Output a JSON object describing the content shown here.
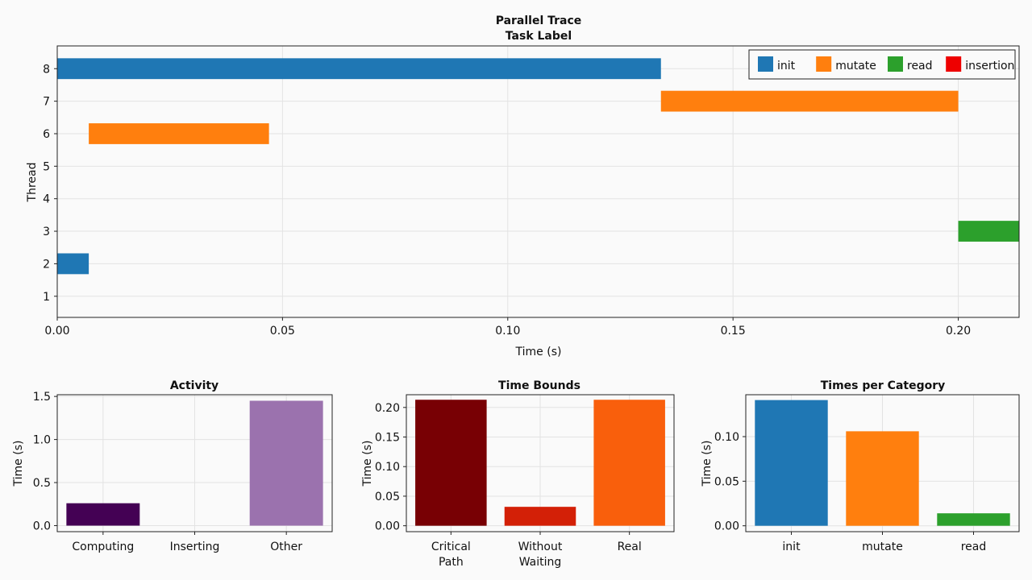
{
  "chart_data": [
    {
      "type": "gantt",
      "title": "Parallel Trace",
      "subtitle": "Task Label",
      "xlabel": "Time (s)",
      "ylabel": "Thread",
      "xlim": [
        0,
        0.2135
      ],
      "ylim": [
        0.35,
        8.7
      ],
      "xticks": [
        "0.00",
        "0.05",
        "0.10",
        "0.15",
        "0.20"
      ],
      "xtick_values": [
        0,
        0.05,
        0.1,
        0.15,
        0.2
      ],
      "yticks": [
        "1",
        "2",
        "3",
        "4",
        "5",
        "6",
        "7",
        "8"
      ],
      "grid": true,
      "legend_position": "top-right",
      "legend": [
        {
          "name": "init",
          "color": "#1f77b4"
        },
        {
          "name": "mutate",
          "color": "#ff7f0e"
        },
        {
          "name": "read",
          "color": "#2ca02c"
        },
        {
          "name": "insertion",
          "color": "#ee0000"
        }
      ],
      "tasks": [
        {
          "thread": 8,
          "start": 0.0,
          "end": 0.134,
          "category": "init"
        },
        {
          "thread": 7,
          "start": 0.134,
          "end": 0.2,
          "category": "mutate"
        },
        {
          "thread": 6,
          "start": 0.007,
          "end": 0.047,
          "category": "mutate"
        },
        {
          "thread": 3,
          "start": 0.2,
          "end": 0.2135,
          "category": "read"
        },
        {
          "thread": 2,
          "start": 0.0,
          "end": 0.007,
          "category": "init"
        }
      ]
    },
    {
      "type": "bar",
      "title": "Activity",
      "ylabel": "Time (s)",
      "categories": [
        "Computing",
        "Inserting",
        "Other"
      ],
      "values": [
        0.26,
        0.0,
        1.45
      ],
      "colors": [
        "#440154",
        "#35b779",
        "#9b72ae"
      ],
      "ylim": [
        -0.07,
        1.52
      ],
      "yticks": [
        "0.0",
        "0.5",
        "1.0",
        "1.5"
      ],
      "ytick_values": [
        0,
        0.5,
        1.0,
        1.5
      ]
    },
    {
      "type": "bar",
      "title": "Time Bounds",
      "ylabel": "Time (s)",
      "categories": [
        "Critical\nPath",
        "Without\nWaiting",
        "Real"
      ],
      "values": [
        0.213,
        0.032,
        0.213
      ],
      "colors": [
        "#780004",
        "#d32007",
        "#f95f0c"
      ],
      "ylim": [
        -0.01,
        0.2215
      ],
      "yticks": [
        "0.00",
        "0.05",
        "0.10",
        "0.15",
        "0.20"
      ],
      "ytick_values": [
        0,
        0.05,
        0.1,
        0.15,
        0.2
      ]
    },
    {
      "type": "bar",
      "title": "Times per Category",
      "ylabel": "Time (s)",
      "categories": [
        "init",
        "mutate",
        "read"
      ],
      "values": [
        0.141,
        0.106,
        0.014
      ],
      "colors": [
        "#1f77b4",
        "#ff7f0e",
        "#2ca02c"
      ],
      "ylim": [
        -0.0066,
        0.147
      ],
      "yticks": [
        "0.00",
        "0.05",
        "0.10"
      ],
      "ytick_values": [
        0,
        0.05,
        0.1
      ]
    }
  ]
}
